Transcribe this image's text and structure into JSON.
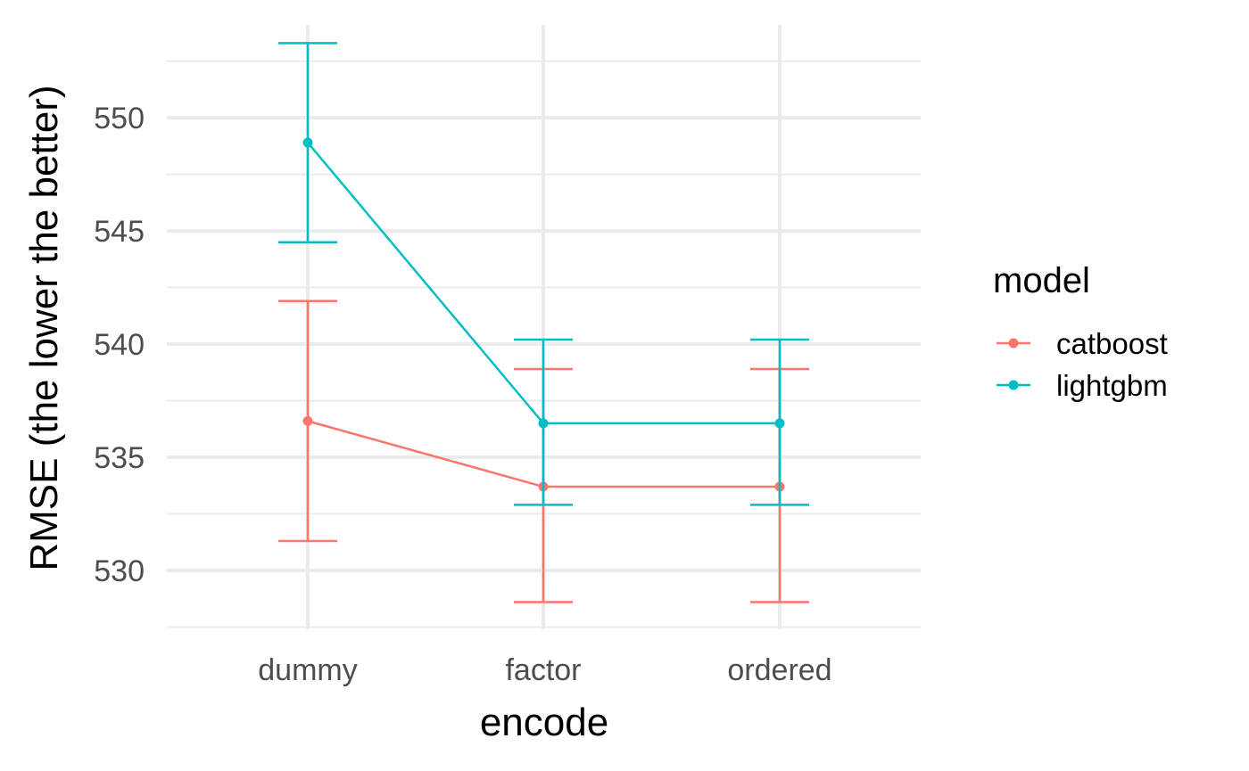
{
  "chart_data": {
    "type": "line",
    "title": "",
    "xlabel": "encode",
    "ylabel": "RMSE (the lower the better)",
    "categories": [
      "dummy",
      "factor",
      "ordered"
    ],
    "ylim": [
      527.4,
      554.1
    ],
    "yticks": [
      530,
      535,
      540,
      545,
      550
    ],
    "grid": true,
    "legend": {
      "title": "model",
      "position": "right"
    },
    "series": [
      {
        "name": "catboost",
        "color": "#F8766D",
        "values": [
          536.6,
          533.7,
          533.7
        ],
        "lower": [
          531.3,
          528.6,
          528.6
        ],
        "upper": [
          541.9,
          538.9,
          538.9
        ]
      },
      {
        "name": "lightgbm",
        "color": "#00BFC4",
        "values": [
          548.9,
          536.5,
          536.5
        ],
        "lower": [
          544.5,
          532.9,
          532.9
        ],
        "upper": [
          553.3,
          540.2,
          540.2
        ]
      }
    ]
  }
}
